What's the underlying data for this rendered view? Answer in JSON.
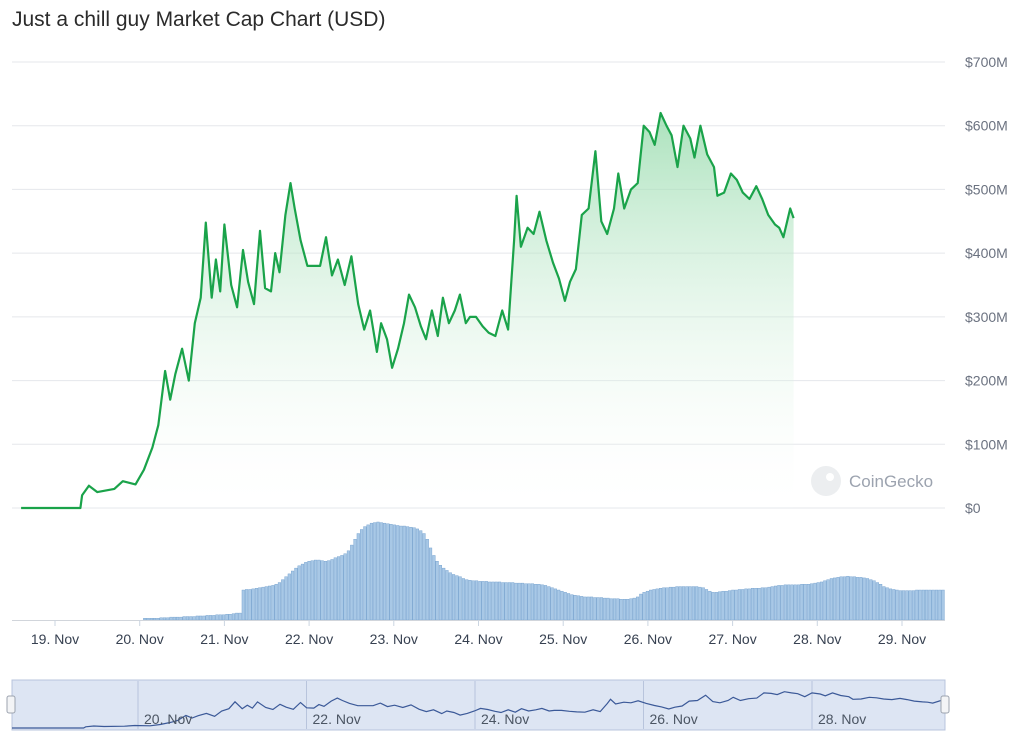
{
  "title": "Just a chill guy Market Cap Chart (USD)",
  "watermark": "CoinGecko",
  "colors": {
    "line": "#1aa34a",
    "area_top": "#8fd8a6",
    "volume_bar": "#a8c8e6",
    "volume_edge": "#6d9ccb",
    "navigator_fill": "#dde5f3",
    "navigator_line": "#3b5998",
    "grid": "#e5e7eb"
  },
  "chart_data": {
    "type": "area",
    "y_axis": {
      "min": 0,
      "max": 700000000,
      "ticks": [
        "$0",
        "$100M",
        "$200M",
        "$300M",
        "$400M",
        "$500M",
        "$600M",
        "$700M"
      ],
      "grid": true,
      "position": "right"
    },
    "x_axis": {
      "ticks": [
        "19. Nov",
        "20. Nov",
        "21. Nov",
        "22. Nov",
        "23. Nov",
        "24. Nov",
        "25. Nov",
        "26. Nov",
        "27. Nov",
        "28. Nov",
        "29. Nov"
      ]
    },
    "series": [
      {
        "unit": "USD",
        "points": [
          [
            18.6,
            0
          ],
          [
            19.0,
            0
          ],
          [
            19.3,
            0
          ],
          [
            19.32,
            20
          ],
          [
            19.4,
            35
          ],
          [
            19.5,
            25
          ],
          [
            19.7,
            30
          ],
          [
            19.8,
            42
          ],
          [
            19.95,
            37
          ],
          [
            20.05,
            60
          ],
          [
            20.15,
            95
          ],
          [
            20.22,
            130
          ],
          [
            20.3,
            215
          ],
          [
            20.36,
            170
          ],
          [
            20.42,
            210
          ],
          [
            20.5,
            250
          ],
          [
            20.58,
            200
          ],
          [
            20.65,
            290
          ],
          [
            20.72,
            330
          ],
          [
            20.78,
            448
          ],
          [
            20.85,
            330
          ],
          [
            20.9,
            390
          ],
          [
            20.95,
            340
          ],
          [
            21.0,
            445
          ],
          [
            21.08,
            350
          ],
          [
            21.15,
            315
          ],
          [
            21.22,
            405
          ],
          [
            21.28,
            355
          ],
          [
            21.35,
            320
          ],
          [
            21.42,
            435
          ],
          [
            21.48,
            345
          ],
          [
            21.55,
            340
          ],
          [
            21.6,
            400
          ],
          [
            21.65,
            370
          ],
          [
            21.72,
            460
          ],
          [
            21.78,
            510
          ],
          [
            21.83,
            470
          ],
          [
            21.9,
            420
          ],
          [
            21.98,
            380
          ],
          [
            22.06,
            380
          ],
          [
            22.13,
            380
          ],
          [
            22.2,
            425
          ],
          [
            22.27,
            365
          ],
          [
            22.34,
            390
          ],
          [
            22.42,
            350
          ],
          [
            22.5,
            395
          ],
          [
            22.58,
            320
          ],
          [
            22.65,
            280
          ],
          [
            22.72,
            310
          ],
          [
            22.8,
            245
          ],
          [
            22.85,
            290
          ],
          [
            22.92,
            265
          ],
          [
            22.98,
            220
          ],
          [
            23.05,
            250
          ],
          [
            23.12,
            290
          ],
          [
            23.18,
            335
          ],
          [
            23.25,
            315
          ],
          [
            23.32,
            285
          ],
          [
            23.38,
            265
          ],
          [
            23.45,
            310
          ],
          [
            23.52,
            270
          ],
          [
            23.58,
            330
          ],
          [
            23.65,
            290
          ],
          [
            23.72,
            310
          ],
          [
            23.78,
            335
          ],
          [
            23.85,
            290
          ],
          [
            23.9,
            300
          ],
          [
            23.97,
            300
          ],
          [
            24.05,
            285
          ],
          [
            24.12,
            275
          ],
          [
            24.2,
            270
          ],
          [
            24.28,
            310
          ],
          [
            24.35,
            280
          ],
          [
            24.42,
            420
          ],
          [
            24.45,
            490
          ],
          [
            24.5,
            410
          ],
          [
            24.58,
            440
          ],
          [
            24.65,
            430
          ],
          [
            24.72,
            465
          ],
          [
            24.8,
            420
          ],
          [
            24.88,
            385
          ],
          [
            24.95,
            360
          ],
          [
            25.02,
            325
          ],
          [
            25.08,
            355
          ],
          [
            25.15,
            375
          ],
          [
            25.22,
            460
          ],
          [
            25.3,
            470
          ],
          [
            25.38,
            560
          ],
          [
            25.45,
            450
          ],
          [
            25.52,
            430
          ],
          [
            25.6,
            470
          ],
          [
            25.65,
            525
          ],
          [
            25.72,
            470
          ],
          [
            25.8,
            500
          ],
          [
            25.88,
            510
          ],
          [
            25.95,
            600
          ],
          [
            26.02,
            590
          ],
          [
            26.08,
            570
          ],
          [
            26.15,
            620
          ],
          [
            26.22,
            600
          ],
          [
            26.28,
            585
          ],
          [
            26.35,
            535
          ],
          [
            26.42,
            600
          ],
          [
            26.5,
            580
          ],
          [
            26.55,
            550
          ],
          [
            26.62,
            600
          ],
          [
            26.7,
            555
          ],
          [
            26.78,
            535
          ],
          [
            26.82,
            490
          ],
          [
            26.9,
            495
          ],
          [
            26.98,
            525
          ],
          [
            27.05,
            515
          ],
          [
            27.12,
            495
          ],
          [
            27.2,
            485
          ],
          [
            27.28,
            505
          ],
          [
            27.35,
            485
          ],
          [
            27.42,
            460
          ],
          [
            27.5,
            445
          ],
          [
            27.55,
            440
          ],
          [
            27.6,
            425
          ],
          [
            27.68,
            470
          ],
          [
            27.72,
            455
          ]
        ]
      }
    ],
    "volume": [
      0,
      0,
      0,
      0,
      0,
      0,
      0,
      0,
      0,
      0,
      0,
      0,
      0,
      0,
      0,
      0,
      0,
      0,
      0,
      0,
      0,
      0,
      0,
      0,
      0,
      0,
      0,
      0,
      0,
      0,
      0,
      0,
      0,
      0,
      0,
      0,
      0,
      0,
      0,
      0,
      3,
      3,
      3,
      3,
      3,
      4,
      4,
      4,
      5,
      5,
      5,
      5,
      6,
      6,
      6,
      6,
      7,
      7,
      7,
      8,
      8,
      8,
      9,
      9,
      9,
      10,
      10,
      11,
      12,
      12,
      52,
      53,
      53,
      54,
      55,
      56,
      57,
      58,
      59,
      60,
      62,
      65,
      70,
      75,
      80,
      85,
      90,
      94,
      97,
      100,
      102,
      103,
      104,
      104,
      103,
      102,
      103,
      105,
      108,
      110,
      112,
      115,
      120,
      130,
      140,
      150,
      157,
      162,
      165,
      168,
      169,
      170,
      169,
      168,
      167,
      166,
      165,
      164,
      163,
      163,
      162,
      161,
      160,
      158,
      155,
      150,
      140,
      125,
      112,
      102,
      95,
      90,
      86,
      82,
      79,
      77,
      75,
      72,
      70,
      69,
      68,
      68,
      67,
      67,
      67,
      66,
      66,
      66,
      66,
      65,
      65,
      65,
      65,
      64,
      64,
      64,
      63,
      63,
      63,
      62,
      62,
      61,
      60,
      58,
      56,
      54,
      52,
      50,
      48,
      46,
      44,
      43,
      42,
      41,
      40,
      40,
      40,
      39,
      39,
      39,
      38,
      38,
      37,
      37,
      37,
      36,
      36,
      36,
      37,
      38,
      40,
      45,
      48,
      50,
      52,
      53,
      54,
      55,
      56,
      56,
      57,
      57,
      58,
      58,
      58,
      58,
      58,
      58,
      58,
      57,
      56,
      53,
      50,
      48,
      48,
      49,
      50,
      50,
      51,
      52,
      52,
      53,
      53,
      54,
      54,
      55,
      55,
      55,
      56,
      56,
      57,
      58,
      59,
      60,
      60,
      61,
      61,
      61,
      61,
      61,
      62,
      62,
      62,
      63,
      64,
      65,
      66,
      68,
      70,
      72,
      73,
      74,
      75,
      75,
      76,
      75,
      75,
      74,
      74,
      73,
      72,
      70,
      68,
      65,
      62,
      58,
      56,
      54,
      53,
      52,
      51,
      51,
      51,
      51,
      51,
      52,
      52,
      52,
      52,
      52,
      52,
      52,
      52,
      52
    ],
    "navigator": {
      "x_ticks": [
        "20. Nov",
        "22. Nov",
        "24. Nov",
        "26. Nov",
        "28. Nov"
      ]
    }
  }
}
